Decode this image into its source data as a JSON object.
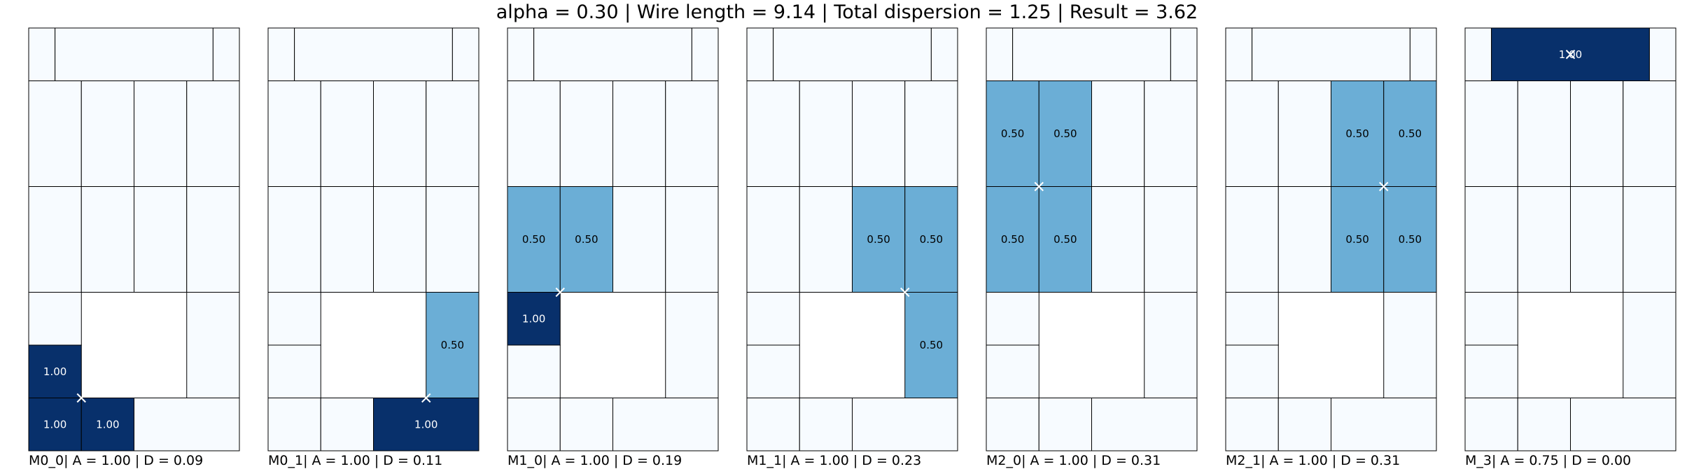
{
  "chart_data": {
    "type": "heatmap",
    "title": "alpha = 0.30 | Wire length = 9.14 | Total dispersion = 1.25 | Result = 3.62",
    "colors": {
      "empty": "#f7fbff",
      "half": "#6baed6",
      "full": "#08306b",
      "outline": "#000000",
      "marker": "#ffffff",
      "void": "#ffffff"
    },
    "cells": [
      [
        0,
        0,
        0.5,
        1
      ],
      [
        0.5,
        0,
        3.5,
        1
      ],
      [
        3.5,
        0,
        4,
        1
      ],
      [
        0,
        1,
        1,
        3
      ],
      [
        1,
        1,
        2,
        3
      ],
      [
        2,
        1,
        3,
        3
      ],
      [
        3,
        1,
        4,
        3
      ],
      [
        0,
        3,
        1,
        5
      ],
      [
        1,
        3,
        2,
        5
      ],
      [
        2,
        3,
        3,
        5
      ],
      [
        3,
        3,
        4,
        5
      ],
      [
        0,
        5,
        1,
        6
      ],
      [
        0,
        6,
        1,
        7
      ],
      [
        3,
        5,
        4,
        7
      ],
      [
        0,
        7,
        1,
        8
      ],
      [
        1,
        7,
        2,
        8
      ],
      [
        2,
        7,
        4,
        8
      ]
    ],
    "panels": [
      {
        "caption": "M0_0| A = 1.00 | D = 0.09",
        "marker": [
          1,
          7
        ],
        "values": [
          [
            12,
            "1.00"
          ],
          [
            14,
            "1.00"
          ],
          [
            15,
            "1.00"
          ]
        ]
      },
      {
        "caption": "M0_1| A = 1.00 | D = 0.11",
        "marker": [
          3,
          7
        ],
        "values": [
          [
            13,
            "0.50"
          ],
          [
            16,
            "1.00"
          ]
        ]
      },
      {
        "caption": "M1_0| A = 1.00 | D = 0.19",
        "marker": [
          1,
          5
        ],
        "values": [
          [
            7,
            "0.50"
          ],
          [
            8,
            "0.50"
          ],
          [
            11,
            "1.00"
          ]
        ]
      },
      {
        "caption": "M1_1| A = 1.00 | D = 0.23",
        "marker": [
          3,
          5
        ],
        "values": [
          [
            9,
            "0.50"
          ],
          [
            10,
            "0.50"
          ],
          [
            13,
            "0.50"
          ]
        ]
      },
      {
        "caption": "M2_0| A = 1.00 | D = 0.31",
        "marker": [
          1,
          3
        ],
        "values": [
          [
            3,
            "0.50"
          ],
          [
            4,
            "0.50"
          ],
          [
            7,
            "0.50"
          ],
          [
            8,
            "0.50"
          ]
        ]
      },
      {
        "caption": "M2_1| A = 1.00 | D = 0.31",
        "marker": [
          3,
          3
        ],
        "values": [
          [
            5,
            "0.50"
          ],
          [
            6,
            "0.50"
          ],
          [
            9,
            "0.50"
          ],
          [
            10,
            "0.50"
          ]
        ]
      },
      {
        "caption": "M_3| A = 0.75 | D = 0.00",
        "marker": [
          2,
          0.5
        ],
        "values": [
          [
            1,
            "1.00"
          ]
        ]
      }
    ]
  }
}
